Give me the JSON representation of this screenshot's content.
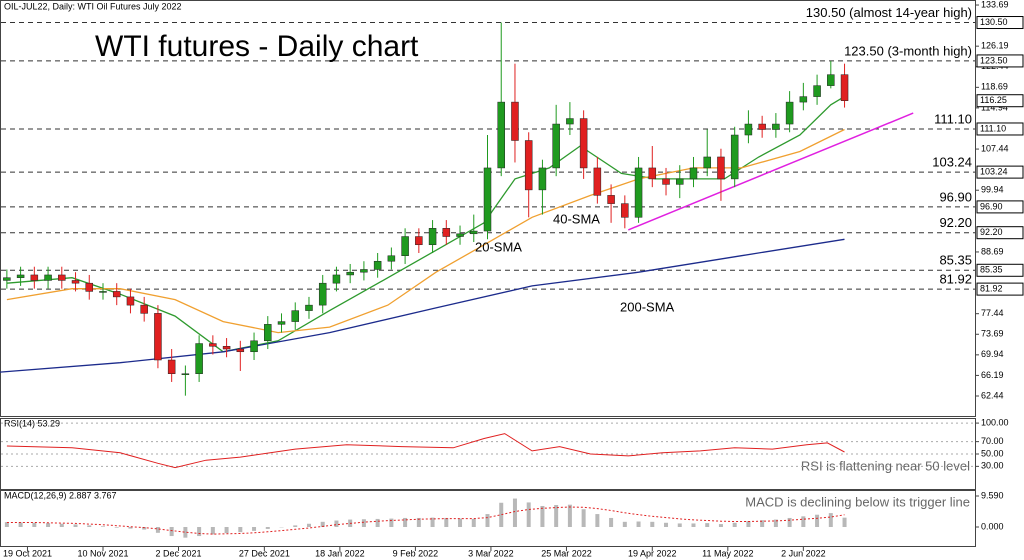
{
  "chart_data": [
    {
      "type": "candlestick",
      "title": "WTI futures - Daily chart",
      "subtitle": "OIL-JUL22, Daily:  WTI Oil Futures July 2022",
      "x": [
        "2021-10-13",
        "2021-10-17",
        "2021-10-21",
        "2021-10-25",
        "2021-10-29",
        "2021-11-02",
        "2021-11-06",
        "2021-11-10",
        "2021-11-14",
        "2021-11-18",
        "2021-11-22",
        "2021-11-26",
        "2021-11-30",
        "2021-12-04",
        "2021-12-08",
        "2021-12-12",
        "2021-12-16",
        "2021-12-20",
        "2021-12-24",
        "2021-12-28",
        "2022-01-01",
        "2022-01-05",
        "2022-01-09",
        "2022-01-13",
        "2022-01-17",
        "2022-01-21",
        "2022-01-25",
        "2022-01-29",
        "2022-02-02",
        "2022-02-06",
        "2022-02-10",
        "2022-02-14",
        "2022-02-18",
        "2022-02-22",
        "2022-02-26",
        "2022-03-02",
        "2022-03-06",
        "2022-03-10",
        "2022-03-14",
        "2022-03-18",
        "2022-03-22",
        "2022-03-26",
        "2022-03-30",
        "2022-04-03",
        "2022-04-07",
        "2022-04-11",
        "2022-04-15",
        "2022-04-19",
        "2022-04-23",
        "2022-04-27",
        "2022-05-01",
        "2022-05-05",
        "2022-05-09",
        "2022-05-13",
        "2022-05-17",
        "2022-05-21",
        "2022-05-25",
        "2022-05-29",
        "2022-06-02",
        "2022-06-06",
        "2022-06-10",
        "2022-06-14"
      ],
      "open": [
        83.5,
        84,
        84.5,
        83.5,
        84.5,
        83.5,
        83,
        81.5,
        81.5,
        80.5,
        79,
        77.5,
        69,
        66.5,
        66.5,
        72,
        71.5,
        71,
        70.5,
        72.5,
        75.5,
        76,
        78,
        79,
        83,
        84.5,
        85,
        85.5,
        87,
        88,
        91.5,
        90,
        93,
        91.5,
        92,
        92.5,
        104,
        116,
        109,
        100,
        104,
        112,
        113,
        104,
        99,
        97.5,
        95,
        104,
        102,
        101,
        102,
        104,
        106,
        102,
        110,
        112,
        111,
        112,
        116,
        117,
        119,
        121
      ],
      "high": [
        85.5,
        86,
        86,
        86,
        86,
        85,
        84.5,
        83,
        83,
        82,
        80.5,
        79,
        71,
        68,
        73.5,
        73.5,
        73,
        72.5,
        74,
        77,
        77.5,
        79.5,
        80.5,
        84.5,
        86,
        86.5,
        87,
        88.5,
        89.5,
        93,
        93,
        94.5,
        94.5,
        93.5,
        95.5,
        110,
        130.5,
        123,
        110.5,
        105.5,
        115.5,
        116,
        114.5,
        106,
        101,
        99,
        106,
        108,
        104,
        104.5,
        106,
        111,
        107.5,
        111.5,
        114.5,
        113.5,
        114,
        118,
        119.5,
        121,
        123.5,
        123
      ],
      "low": [
        82,
        82.5,
        82,
        82,
        82,
        81.5,
        80,
        80,
        79,
        77.5,
        76,
        67.5,
        65,
        62.5,
        65,
        70,
        69.5,
        67,
        69,
        71,
        74,
        74.5,
        76.5,
        77.5,
        81.5,
        83,
        83.5,
        84,
        85.5,
        86.5,
        88.5,
        88.5,
        90,
        90,
        90.5,
        91,
        102.5,
        105,
        95,
        95.5,
        102.5,
        110,
        102,
        97.5,
        94,
        93,
        94,
        100.5,
        99,
        98.5,
        100.5,
        102.5,
        98,
        100.5,
        108.5,
        109.5,
        109.5,
        110.5,
        114.5,
        115.5,
        118.5,
        115
      ],
      "close": [
        84,
        84.5,
        83.5,
        84.5,
        83.5,
        83,
        81.5,
        81.5,
        80.5,
        79,
        77.5,
        69,
        66.5,
        66.5,
        72,
        71.5,
        71,
        70.5,
        72.5,
        75.5,
        76,
        78,
        79,
        83,
        84.5,
        85,
        85.5,
        87,
        88,
        91.5,
        90,
        93,
        91.5,
        92,
        92.5,
        104,
        116,
        109,
        100,
        104,
        112,
        113,
        104,
        99,
        97.5,
        95,
        104,
        102,
        101,
        102,
        104,
        106,
        102,
        110,
        112,
        111,
        112,
        116,
        117,
        119,
        121,
        116.25
      ],
      "up_color": "#1f9a1f",
      "down_color": "#e02020",
      "xlim": [
        "2021-10-11",
        "2022-07-22"
      ],
      "ylim": [
        59.16,
        134.24
      ],
      "yticks": [
        133.69,
        126.19,
        122.44,
        118.69,
        114.94,
        107.44,
        99.94,
        88.69,
        77.44,
        73.69,
        69.94,
        66.19,
        62.44
      ],
      "levels": [
        {
          "value": 130.5,
          "label": "130.50",
          "note": "130.50 (almost 14-year high)",
          "color": "#e53935"
        },
        {
          "value": 123.5,
          "label": "123.50",
          "note": "123.50 (3-month high)",
          "color": "#e53935"
        },
        {
          "value": 111.1,
          "label": "111.10",
          "note": "111.10",
          "color": "#2e8b2e"
        },
        {
          "value": 103.24,
          "label": "103.24",
          "note": "103.24",
          "color": "#2e8b2e"
        },
        {
          "value": 96.9,
          "label": "96.90",
          "note": "96.90",
          "color": "#2e8b2e"
        },
        {
          "value": 92.2,
          "label": "92.20",
          "note": "92.20",
          "color": "#2e8b2e"
        },
        {
          "value": 85.35,
          "label": "85.35",
          "note": "85.35",
          "color": "#2e8b2e"
        },
        {
          "value": 81.92,
          "label": "81.92",
          "note": "81.92",
          "color": "#2e8b2e"
        }
      ],
      "current": {
        "value": 116.25,
        "label": "116.25"
      },
      "lines": [
        {
          "name": "20-SMA",
          "color": "#2e9a2e",
          "x": [
            "2021-10-13",
            "2021-11-01",
            "2021-11-15",
            "2021-12-01",
            "2021-12-15",
            "2021-12-31",
            "2022-01-15",
            "2022-02-01",
            "2022-02-15",
            "2022-03-01",
            "2022-03-10",
            "2022-03-20",
            "2022-03-29",
            "2022-04-10",
            "2022-04-20",
            "2022-05-01",
            "2022-05-10",
            "2022-05-20",
            "2022-06-01",
            "2022-06-10",
            "2022-06-14"
          ],
          "values": [
            83,
            84,
            81,
            77,
            70.5,
            72.5,
            78,
            84,
            89,
            94,
            102,
            104,
            108,
            103,
            102,
            102,
            102,
            106,
            110,
            115.5,
            117
          ]
        },
        {
          "name": "40-SMA",
          "color": "#f0a030",
          "x": [
            "2021-10-13",
            "2021-11-01",
            "2021-11-15",
            "2021-12-01",
            "2021-12-15",
            "2021-12-31",
            "2022-01-15",
            "2022-02-01",
            "2022-02-15",
            "2022-03-01",
            "2022-03-15",
            "2022-04-01",
            "2022-04-15",
            "2022-05-01",
            "2022-05-15",
            "2022-06-01",
            "2022-06-14"
          ],
          "values": [
            80,
            82,
            82,
            80,
            76,
            74,
            75,
            79,
            85,
            90,
            95,
            99,
            102,
            104,
            104,
            107,
            111
          ]
        },
        {
          "name": "200-SMA",
          "color": "#1c2b8c",
          "x": [
            "2021-10-11",
            "2021-11-15",
            "2021-12-15",
            "2022-01-15",
            "2022-02-15",
            "2022-03-15",
            "2022-04-15",
            "2022-05-15",
            "2022-06-14"
          ],
          "values": [
            66.8,
            68.5,
            70.5,
            74,
            78.5,
            82.5,
            85,
            88,
            91
          ]
        }
      ],
      "trendline": {
        "color": "#e020e0",
        "x": [
          "2022-04-12",
          "2022-07-04"
        ],
        "values": [
          92.7,
          114
        ]
      }
    },
    {
      "type": "line",
      "title": "RSI(14) 53.29",
      "note": "RSI is flattening near 50 level",
      "x": [
        "2021-10-13",
        "2021-11-01",
        "2021-11-15",
        "2021-11-26",
        "2021-12-01",
        "2021-12-10",
        "2021-12-20",
        "2022-01-05",
        "2022-01-20",
        "2022-02-05",
        "2022-02-20",
        "2022-03-01",
        "2022-03-07",
        "2022-03-15",
        "2022-03-23",
        "2022-04-01",
        "2022-04-12",
        "2022-04-22",
        "2022-05-03",
        "2022-05-13",
        "2022-05-24",
        "2022-06-03",
        "2022-06-09",
        "2022-06-14"
      ],
      "values": [
        63,
        60,
        52,
        35,
        28,
        40,
        45,
        58,
        65,
        62,
        60,
        75,
        83,
        55,
        62,
        50,
        47,
        52,
        55,
        60,
        58,
        65,
        68,
        53.29
      ],
      "color": "#e02020",
      "xlim": [
        "2021-10-11",
        "2022-07-22"
      ],
      "ylim": [
        -5,
        105
      ],
      "yticks": [
        {
          "value": 100,
          "label": "100.00"
        },
        {
          "value": 70,
          "label": "70.00"
        },
        {
          "value": 50,
          "label": "50.00"
        },
        {
          "value": 30,
          "label": "30.00"
        }
      ]
    },
    {
      "type": "bar",
      "title": "MACD(12,26,9) 2.887 3.767",
      "note": "MACD is declining below its trigger line",
      "x": [
        "2021-10-13",
        "2021-10-17",
        "2021-10-21",
        "2021-10-25",
        "2021-10-29",
        "2021-11-02",
        "2021-11-06",
        "2021-11-10",
        "2021-11-14",
        "2021-11-18",
        "2021-11-22",
        "2021-11-26",
        "2021-11-30",
        "2021-12-04",
        "2021-12-08",
        "2021-12-12",
        "2021-12-16",
        "2021-12-20",
        "2021-12-24",
        "2021-12-28",
        "2022-01-01",
        "2022-01-05",
        "2022-01-09",
        "2022-01-13",
        "2022-01-17",
        "2022-01-21",
        "2022-01-25",
        "2022-01-29",
        "2022-02-02",
        "2022-02-06",
        "2022-02-10",
        "2022-02-14",
        "2022-02-18",
        "2022-02-22",
        "2022-02-26",
        "2022-03-02",
        "2022-03-06",
        "2022-03-10",
        "2022-03-14",
        "2022-03-18",
        "2022-03-22",
        "2022-03-26",
        "2022-03-30",
        "2022-04-03",
        "2022-04-07",
        "2022-04-11",
        "2022-04-15",
        "2022-04-19",
        "2022-04-23",
        "2022-04-27",
        "2022-05-01",
        "2022-05-05",
        "2022-05-09",
        "2022-05-13",
        "2022-05-17",
        "2022-05-21",
        "2022-05-25",
        "2022-05-29",
        "2022-06-02",
        "2022-06-06",
        "2022-06-10",
        "2022-06-14"
      ],
      "values": [
        1.5,
        1.4,
        1.3,
        1.2,
        1.0,
        0.8,
        0.5,
        0.2,
        -0.2,
        -0.5,
        -0.8,
        -1.8,
        -2.8,
        -3.3,
        -2.8,
        -2.3,
        -1.9,
        -1.6,
        -1.2,
        -0.6,
        -0.1,
        0.5,
        1.0,
        1.6,
        2.0,
        2.3,
        2.4,
        2.5,
        2.6,
        2.8,
        2.8,
        2.9,
        2.8,
        2.6,
        2.5,
        4.0,
        7.5,
        8.8,
        7.6,
        6.5,
        6.8,
        6.9,
        5.5,
        4.0,
        2.8,
        1.6,
        1.7,
        1.6,
        1.3,
        1.1,
        1.1,
        1.2,
        0.9,
        1.3,
        1.8,
        2.1,
        2.3,
        2.8,
        3.3,
        3.8,
        4.3,
        2.887
      ],
      "color": "#b8b8b8",
      "signal": {
        "color": "#e02020",
        "values": [
          1.4,
          1.4,
          1.4,
          1.3,
          1.2,
          1.1,
          0.9,
          0.7,
          0.4,
          0.1,
          -0.2,
          -0.6,
          -1.1,
          -1.6,
          -2.0,
          -2.2,
          -2.1,
          -2.0,
          -1.8,
          -1.5,
          -1.1,
          -0.7,
          -0.3,
          0.2,
          0.7,
          1.1,
          1.5,
          1.8,
          2.0,
          2.2,
          2.4,
          2.5,
          2.6,
          2.6,
          2.6,
          2.9,
          3.8,
          4.8,
          5.4,
          5.8,
          6.0,
          6.2,
          6.1,
          5.7,
          5.1,
          4.4,
          3.8,
          3.3,
          2.9,
          2.5,
          2.2,
          2.0,
          1.8,
          1.7,
          1.7,
          1.8,
          1.9,
          2.1,
          2.4,
          2.7,
          3.1,
          3.767
        ]
      },
      "xlim": [
        "2021-10-11",
        "2022-07-22"
      ],
      "ylim": [
        -5.88,
        10.83
      ],
      "yticks": [
        {
          "value": 9.59,
          "label": "9.590"
        },
        {
          "value": 0,
          "label": "0.000"
        }
      ],
      "xticks": [
        {
          "value": "2021-10-19",
          "label": "19 Oct 2021"
        },
        {
          "value": "2021-11-10",
          "label": "10 Nov 2021"
        },
        {
          "value": "2021-12-02",
          "label": "2 Dec 2021"
        },
        {
          "value": "2021-12-27",
          "label": "27 Dec 2021"
        },
        {
          "value": "2022-01-18",
          "label": "18 Jan 2022"
        },
        {
          "value": "2022-02-09",
          "label": "9 Feb 2022"
        },
        {
          "value": "2022-03-03",
          "label": "3 Mar 2022"
        },
        {
          "value": "2022-03-25",
          "label": "25 Mar 2022"
        },
        {
          "value": "2022-04-19",
          "label": "19 Apr 2022"
        },
        {
          "value": "2022-05-11",
          "label": "11 May 2022"
        },
        {
          "value": "2022-06-02",
          "label": "2 Jun 2022"
        }
      ]
    }
  ]
}
